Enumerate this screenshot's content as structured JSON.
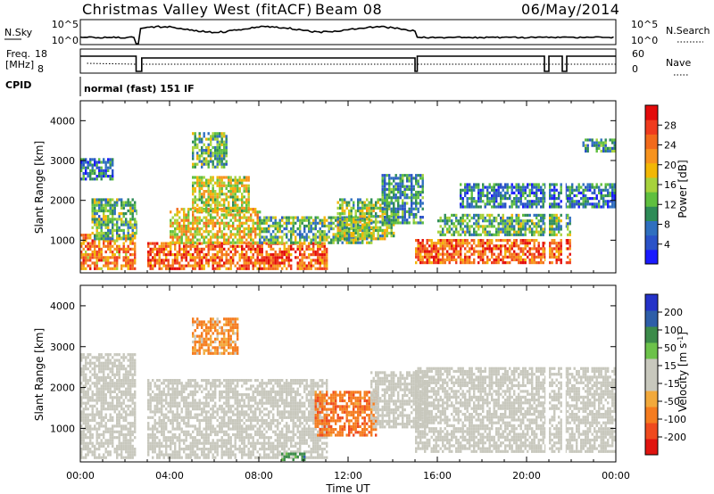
{
  "header": {
    "station": "Christmas Valley West (fitACF)",
    "beam": "Beam 08",
    "date": "06/May/2014"
  },
  "top_panels": {
    "nsky_label": "N.Sky",
    "nsky_ticks": [
      "10^5",
      "10^0"
    ],
    "nsearch_label": "N.Search",
    "nsearch_ticks": [
      "10^5",
      "10^0"
    ],
    "freq_label_1": "Freq.",
    "freq_label_2": "[MHz]",
    "freq_ticks": [
      "18",
      "8"
    ],
    "nave_label": "Nave",
    "nave_ticks": [
      "60",
      "0"
    ],
    "cpid_label": "CPID",
    "cpid_text": "normal (fast) 151 IF"
  },
  "chart_data": [
    {
      "type": "heatmap",
      "name": "power",
      "ylabel": "Slant Range [km]",
      "y_ticks": [
        "1000",
        "2000",
        "3000",
        "4000"
      ],
      "ylim": [
        180,
        4500
      ],
      "x_ticks": [
        "00:00",
        "04:00",
        "08:00",
        "12:00",
        "16:00",
        "20:00",
        "00:00"
      ],
      "xlim_hours": [
        0,
        24
      ],
      "colorbar": {
        "label": "Power [dB]",
        "ticks": [
          "4",
          "8",
          "12",
          "16",
          "20",
          "24",
          "28"
        ],
        "colors": [
          "#1a1aff",
          "#2a52c8",
          "#2f6fbf",
          "#2e8b57",
          "#5fbf3f",
          "#a7d23c",
          "#f2b705",
          "#f7931e",
          "#f26a1b",
          "#ef3b1e",
          "#e30b0b"
        ]
      },
      "echo_bands": [
        {
          "t0": 0,
          "t1": 2.5,
          "r0": 250,
          "r1": 1100,
          "p": 22
        },
        {
          "t0": 0.5,
          "t1": 2.7,
          "r0": 1000,
          "r1": 2000,
          "p": 12
        },
        {
          "t0": 0,
          "t1": 1.5,
          "r0": 2500,
          "r1": 3000,
          "p": 8
        },
        {
          "t0": 3,
          "t1": 11,
          "r0": 250,
          "r1": 900,
          "p": 24
        },
        {
          "t0": 4,
          "t1": 8,
          "r0": 900,
          "r1": 1800,
          "p": 18
        },
        {
          "t0": 5,
          "t1": 7.5,
          "r0": 1700,
          "r1": 2600,
          "p": 16
        },
        {
          "t0": 5,
          "t1": 6.5,
          "r0": 2800,
          "r1": 3700,
          "p": 12
        },
        {
          "t0": 8,
          "t1": 13,
          "r0": 900,
          "r1": 1600,
          "p": 12
        },
        {
          "t0": 11.5,
          "t1": 14,
          "r0": 1000,
          "r1": 2000,
          "p": 14
        },
        {
          "t0": 13.5,
          "t1": 15.3,
          "r0": 1400,
          "r1": 2600,
          "p": 10
        },
        {
          "t0": 15,
          "t1": 22,
          "r0": 400,
          "r1": 1000,
          "p": 24
        },
        {
          "t0": 16,
          "t1": 22,
          "r0": 1100,
          "r1": 1600,
          "p": 12
        },
        {
          "t0": 17,
          "t1": 24,
          "r0": 1800,
          "r1": 2400,
          "p": 8
        },
        {
          "t0": 22.5,
          "t1": 24,
          "r0": 3200,
          "r1": 3500,
          "p": 10
        }
      ]
    },
    {
      "type": "heatmap",
      "name": "velocity",
      "ylabel": "Slant Range [km]",
      "y_ticks": [
        "1000",
        "2000",
        "3000",
        "4000"
      ],
      "ylim": [
        180,
        4500
      ],
      "x_ticks": [
        "00:00",
        "04:00",
        "08:00",
        "12:00",
        "16:00",
        "20:00",
        "00:00"
      ],
      "xlim_hours": [
        0,
        24
      ],
      "xlabel": "Time UT",
      "colorbar": {
        "label": "Velocity [m s^-1]",
        "ticks": [
          "200",
          "100",
          "50",
          "15",
          "-15",
          "-50",
          "-100",
          "-200"
        ],
        "colors": [
          "#2432c8",
          "#2e5ea8",
          "#3c8b4a",
          "#6cc24a",
          "#c8c8bd",
          "#c8c8bd",
          "#f2a93b",
          "#f57c1f",
          "#ef4a1e",
          "#e0140f"
        ]
      },
      "echo_bands": [
        {
          "t0": 0,
          "t1": 2.5,
          "r0": 250,
          "r1": 2800,
          "v": 0
        },
        {
          "t0": 3,
          "t1": 11,
          "r0": 250,
          "r1": 2200,
          "v": 0
        },
        {
          "t0": 5,
          "t1": 7,
          "r0": 2800,
          "r1": 3700,
          "v": -40
        },
        {
          "t0": 10.5,
          "t1": 13.2,
          "r0": 800,
          "r1": 1900,
          "v": -60
        },
        {
          "t0": 13,
          "t1": 15.5,
          "r0": 1000,
          "r1": 2400,
          "v": 0
        },
        {
          "t0": 15,
          "t1": 24,
          "r0": 400,
          "r1": 2500,
          "v": 0
        },
        {
          "t0": 9,
          "t1": 10,
          "r0": 200,
          "r1": 400,
          "v": 50
        }
      ]
    }
  ]
}
